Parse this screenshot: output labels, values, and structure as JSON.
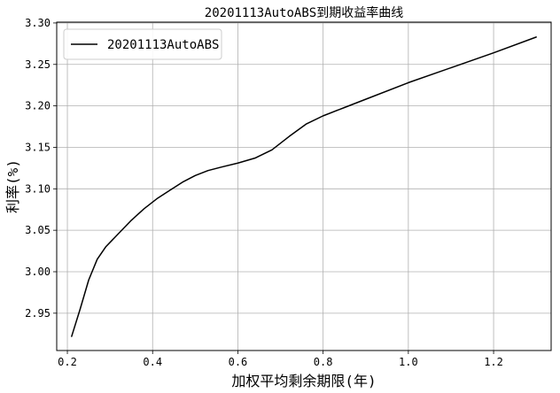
{
  "chart_data": {
    "type": "line",
    "title": "20201113AutoABS到期收益率曲线",
    "xlabel": "加权平均剩余期限(年)",
    "ylabel": "利率(%)",
    "xlim": [
      0.175,
      1.335
    ],
    "ylim": [
      2.905,
      3.301
    ],
    "xticks": [
      0.2,
      0.4,
      0.6,
      0.8,
      1.0,
      1.2
    ],
    "xtick_labels": [
      "0.2",
      "0.4",
      "0.6",
      "0.8",
      "1.0",
      "1.2"
    ],
    "yticks": [
      2.95,
      3.0,
      3.05,
      3.1,
      3.15,
      3.2,
      3.25,
      3.3
    ],
    "ytick_labels": [
      "2.95",
      "3.00",
      "3.05",
      "3.10",
      "3.15",
      "3.20",
      "3.25",
      "3.30"
    ],
    "grid": true,
    "legend_position": "top-left",
    "series": [
      {
        "name": "20201113AutoABS",
        "color": "#000000",
        "x": [
          0.21,
          0.23,
          0.25,
          0.27,
          0.29,
          0.32,
          0.35,
          0.38,
          0.41,
          0.44,
          0.47,
          0.5,
          0.53,
          0.56,
          0.6,
          0.64,
          0.68,
          0.72,
          0.76,
          0.8,
          0.85,
          0.9,
          1.0,
          1.1,
          1.2,
          1.3
        ],
        "y": [
          2.922,
          2.955,
          2.99,
          3.015,
          3.03,
          3.046,
          3.062,
          3.076,
          3.088,
          3.098,
          3.108,
          3.116,
          3.122,
          3.126,
          3.131,
          3.137,
          3.147,
          3.163,
          3.178,
          3.188,
          3.198,
          3.208,
          3.228,
          3.246,
          3.264,
          3.283
        ]
      }
    ]
  }
}
